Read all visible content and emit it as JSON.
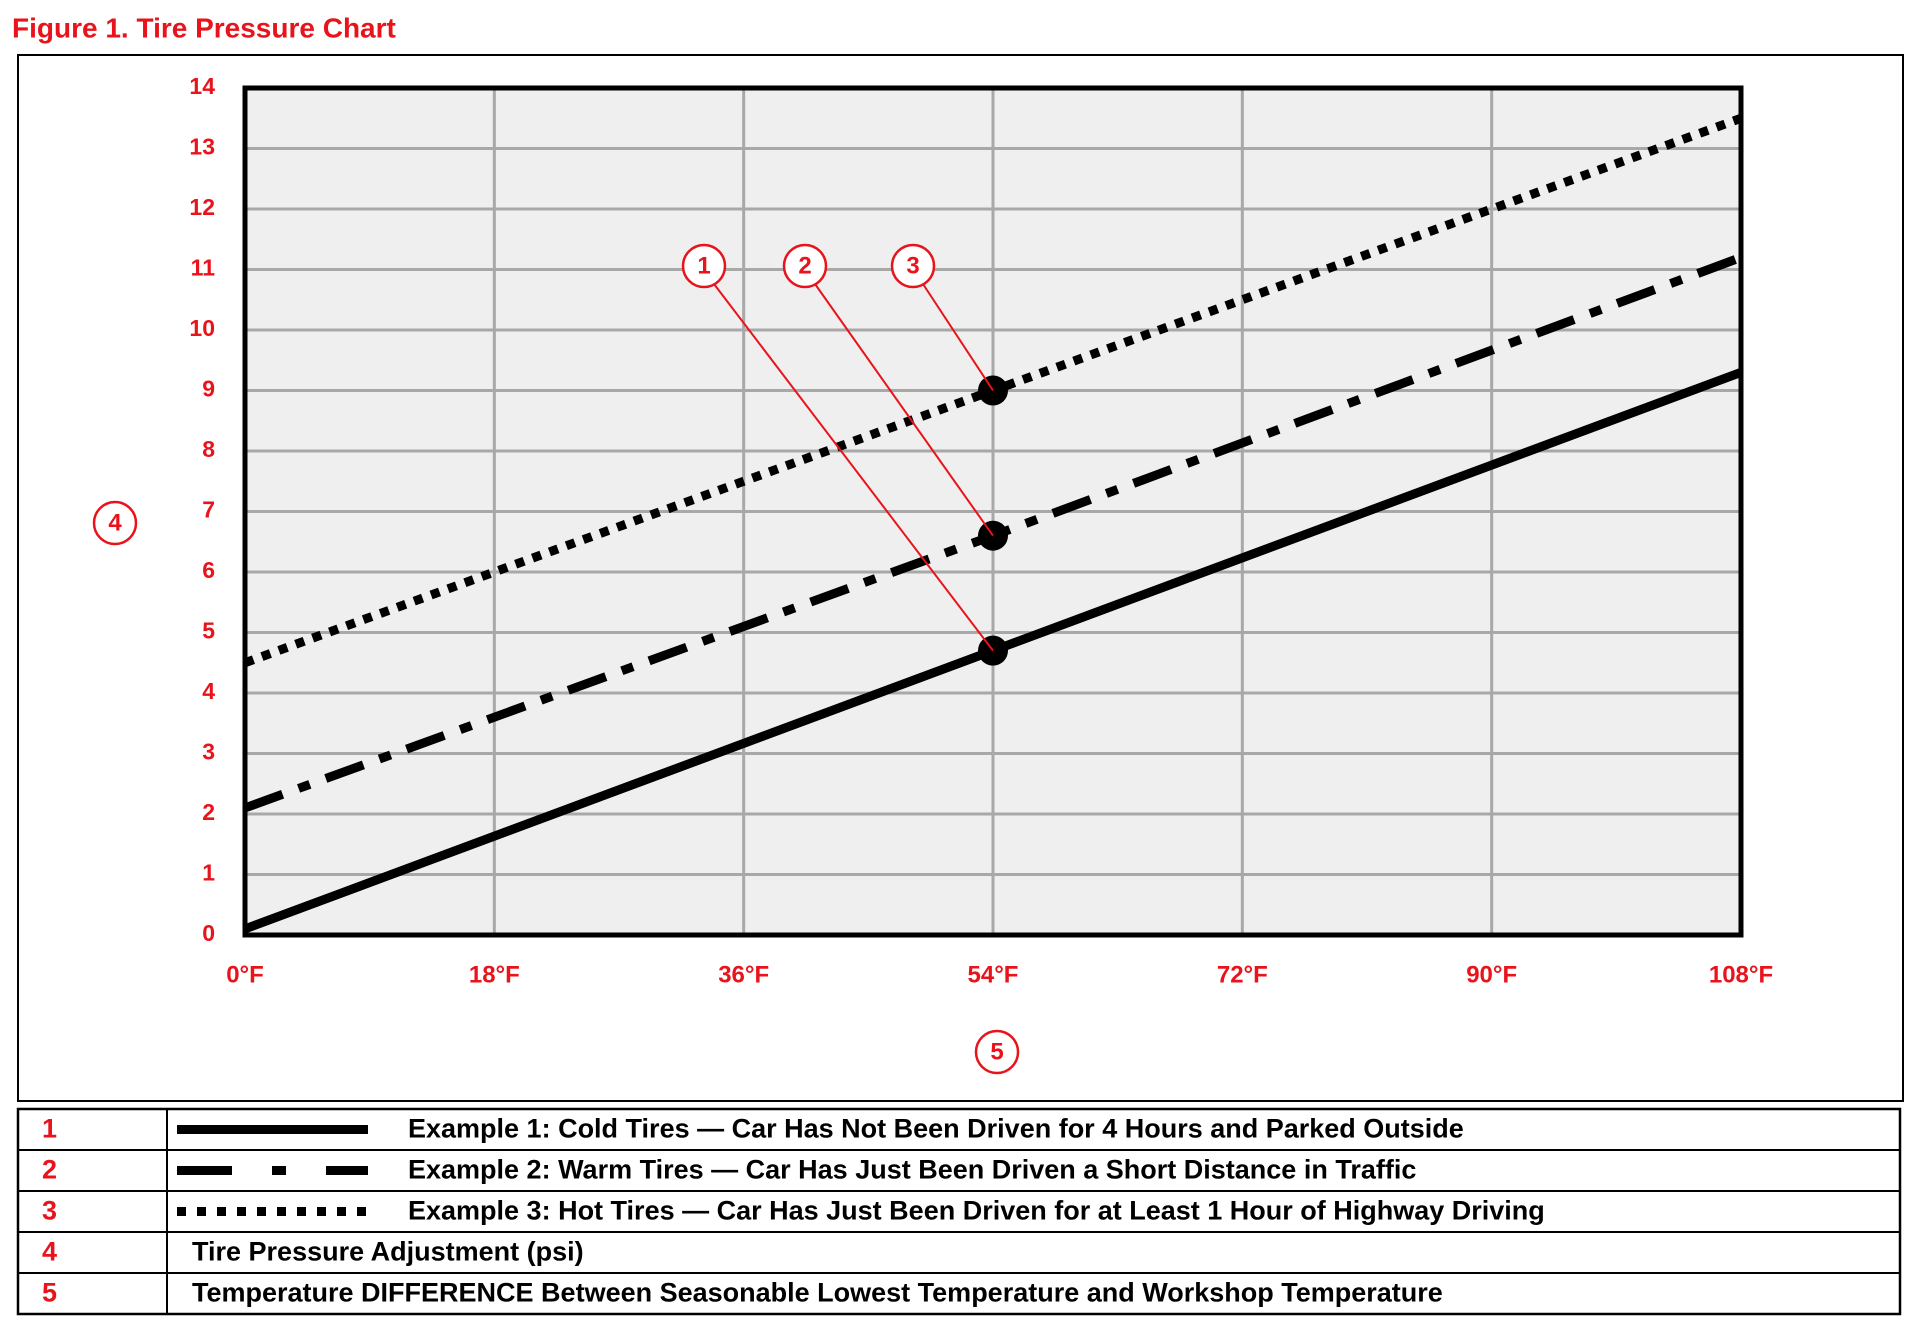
{
  "chart_data": {
    "type": "line",
    "title": "Figure 1. Tire Pressure Chart",
    "x": [
      0,
      54,
      108
    ],
    "series": [
      {
        "key": "1",
        "name": "Example 1: Cold Tires — Car Has Not Been Driven for 4 Hours and Parked Outside",
        "color": "#000000",
        "style": "solid",
        "values": [
          0.1,
          4.7,
          9.3
        ]
      },
      {
        "key": "2",
        "name": "Example 2: Warm Tires — Car Has Just Been Driven a Short Distance in Traffic",
        "color": "#000000",
        "style": "dash-dot",
        "values": [
          2.1,
          6.6,
          11.2
        ]
      },
      {
        "key": "3",
        "name": "Example 3: Hot Tires — Car Has Just Been Driven for at Least 1 Hour of Highway Driving",
        "color": "#000000",
        "style": "dotted",
        "values": [
          4.5,
          9.0,
          13.5
        ]
      }
    ],
    "marker_x": 54,
    "ylabel_key": "4",
    "ylabel": "Tire Pressure Adjustment (psi)",
    "xlabel_key": "5",
    "xlabel": "Temperature DIFFERENCE Between Seasonable Lowest Temperature and Workshop Temperature",
    "xlim": [
      0,
      108
    ],
    "xticks": [
      {
        "value": 0,
        "label": "0°F"
      },
      {
        "value": 18,
        "label": "18°F"
      },
      {
        "value": 36,
        "label": "36°F"
      },
      {
        "value": 54,
        "label": "54°F"
      },
      {
        "value": 72,
        "label": "72°F"
      },
      {
        "value": 90,
        "label": "90°F"
      },
      {
        "value": 108,
        "label": "108°F"
      }
    ],
    "ylim": [
      0,
      14
    ],
    "yticks": [
      0,
      1,
      2,
      3,
      4,
      5,
      6,
      7,
      8,
      9,
      10,
      11,
      12,
      13,
      14
    ],
    "grid": true
  }
}
